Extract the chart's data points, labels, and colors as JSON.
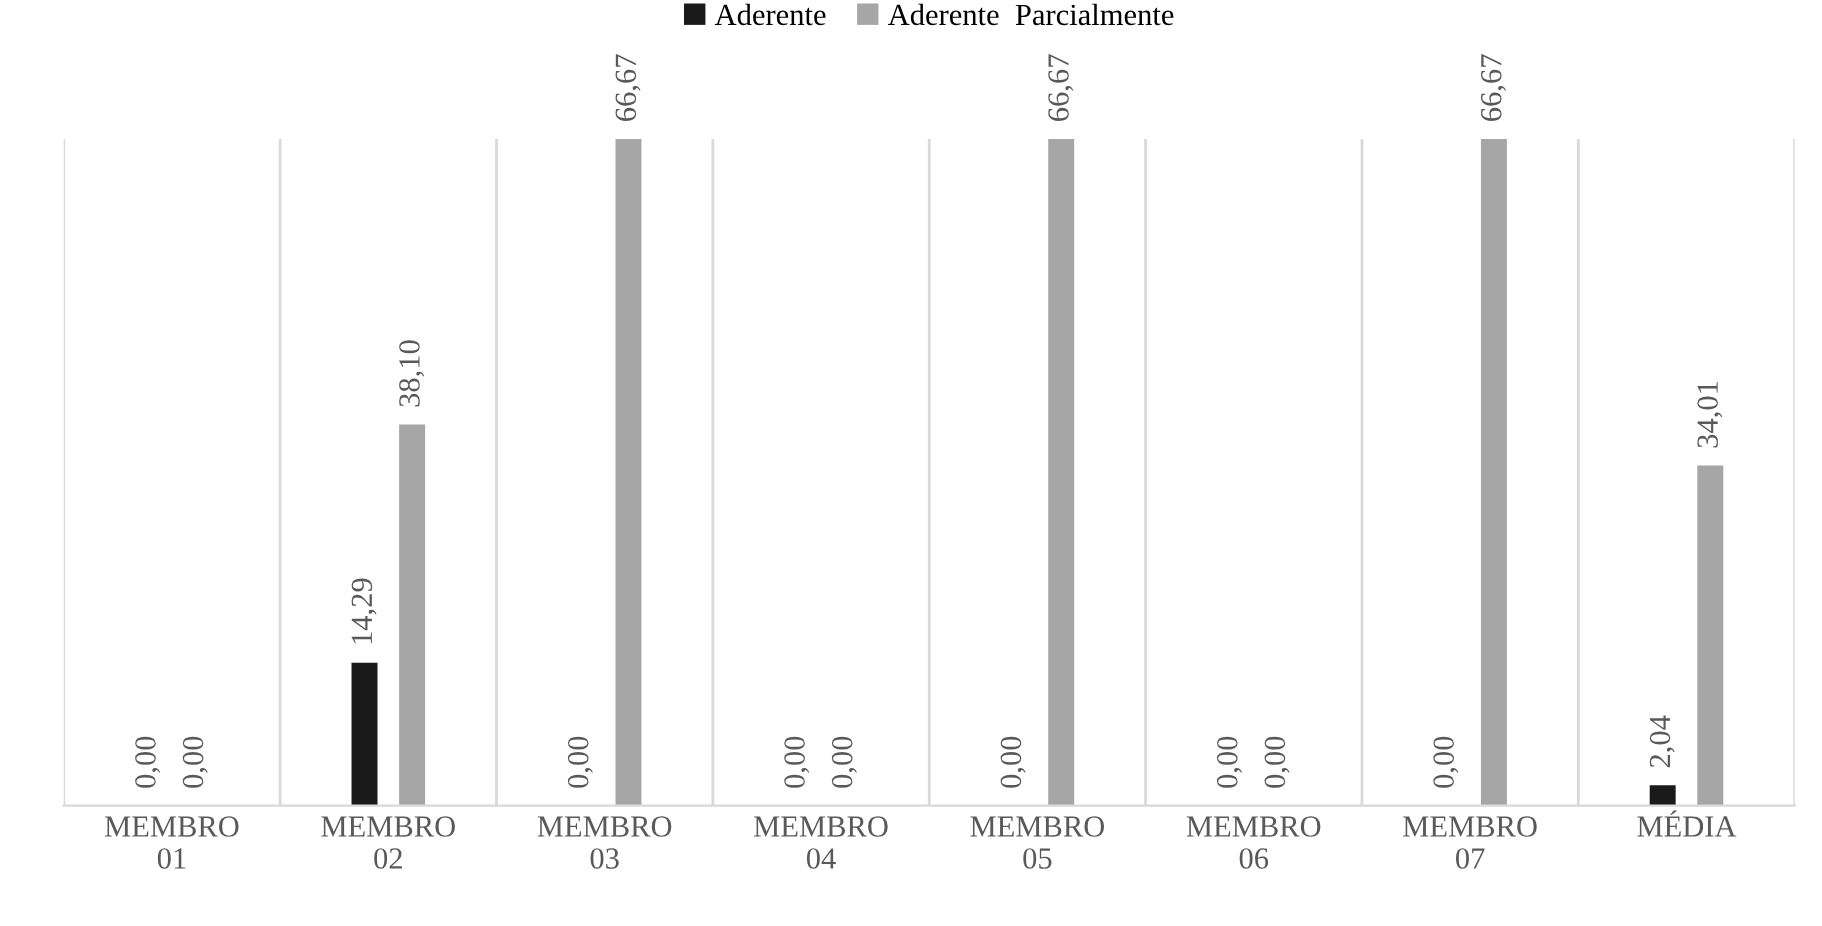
{
  "chart_data": {
    "type": "bar",
    "categories": [
      "MEMBRO\n01",
      "MEMBRO\n02",
      "MEMBRO\n03",
      "MEMBRO\n04",
      "MEMBRO\n05",
      "MEMBRO\n06",
      "MEMBRO\n07",
      "MÉDIA"
    ],
    "series": [
      {
        "name": "Aderente",
        "color": "#1a1a1a",
        "values": [
          0,
          14.29,
          0,
          0,
          0,
          0,
          0,
          2.04
        ],
        "value_labels": [
          "0,00",
          "14,29",
          "0,00",
          "0,00",
          "0,00",
          "0,00",
          "0,00",
          "2,04"
        ]
      },
      {
        "name": "Aderente  Parcialmente",
        "color": "#a6a6a6",
        "values": [
          0,
          38.1,
          66.67,
          0,
          66.67,
          0,
          66.67,
          34.01
        ],
        "value_labels": [
          "0,00",
          "38,10",
          "66,67",
          "0,00",
          "66,67",
          "0,00",
          "66,67",
          "34,01"
        ]
      }
    ],
    "grid": "x",
    "legend": "top"
  }
}
